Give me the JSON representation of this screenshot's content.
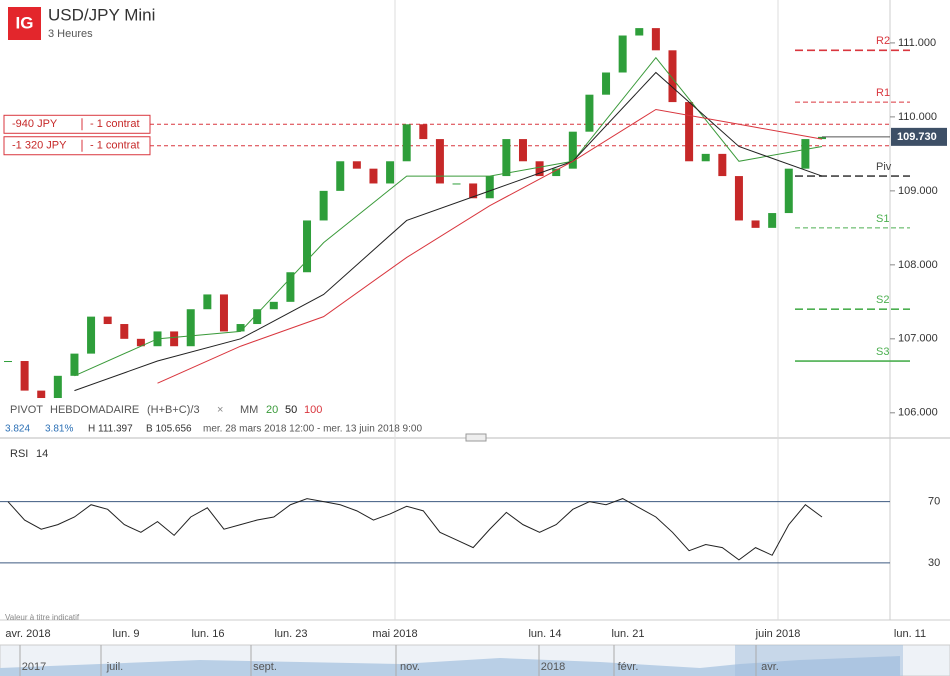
{
  "header": {
    "logo": "IG",
    "title": "USD/JPY Mini",
    "subtitle": "3 Heures"
  },
  "price_axis": {
    "ylim": [
      105.7,
      111.58
    ],
    "yticks": [
      {
        "value": 111,
        "label": "111.000"
      },
      {
        "value": 110,
        "label": "110.000"
      },
      {
        "value": 109,
        "label": "109.000"
      },
      {
        "value": 108,
        "label": "108.000"
      },
      {
        "value": 107,
        "label": "107.000"
      },
      {
        "value": 106,
        "label": "106.000"
      }
    ]
  },
  "current": {
    "value": 109.73,
    "label": "109.730"
  },
  "orders": [
    {
      "value": 109.9,
      "amount": "-940 JPY",
      "size": "- 1 contrat"
    },
    {
      "value": 109.61,
      "amount": "-1 320 JPY",
      "size": "- 1 contrat"
    }
  ],
  "pivots": [
    {
      "name": "R2",
      "value": 110.9,
      "color": "#d9363e"
    },
    {
      "name": "R1",
      "value": 110.2,
      "color": "#d9363e"
    },
    {
      "name": "Piv",
      "value": 109.2,
      "color": "#444444"
    },
    {
      "name": "S1",
      "value": 108.5,
      "color": "#4caf50"
    },
    {
      "name": "S2",
      "value": 107.4,
      "color": "#4caf50"
    },
    {
      "name": "S3",
      "value": 106.7,
      "color": "#4caf50"
    }
  ],
  "candles": {
    "up_color": "#2e9e3a",
    "down_color": "#c62828",
    "closes": [
      106.7,
      106.3,
      106.2,
      106.5,
      106.8,
      107.3,
      107.2,
      107.0,
      106.9,
      107.1,
      106.9,
      107.4,
      107.6,
      107.1,
      107.2,
      107.4,
      107.5,
      107.9,
      108.6,
      109.0,
      109.4,
      109.3,
      109.1,
      109.4,
      109.9,
      109.7,
      109.1,
      109.1,
      108.9,
      109.2,
      109.7,
      109.4,
      109.2,
      109.3,
      109.8,
      110.3,
      110.6,
      111.1,
      111.2,
      110.9,
      110.2,
      109.4,
      109.5,
      109.2,
      108.6,
      108.5,
      108.7,
      109.3,
      109.7,
      109.73
    ]
  },
  "legend": {
    "pivot": "PIVOT",
    "pivot_type": "HEBDOMADAIRE",
    "pivot_formula": "(H+B+C)/3",
    "ma": "MM"
  },
  "ma": [
    {
      "name": "20",
      "color": "#3a9a3a",
      "values": [
        106.5,
        107.0,
        107.1,
        108.3,
        109.2,
        109.2,
        109.4,
        110.8,
        109.4,
        109.6
      ]
    },
    {
      "name": "50",
      "color": "#222222",
      "values": [
        106.3,
        106.7,
        107.0,
        107.6,
        108.6,
        109.0,
        109.4,
        110.6,
        109.6,
        109.2
      ]
    },
    {
      "name": "100",
      "color": "#d9363e",
      "values": [
        null,
        106.4,
        106.9,
        107.3,
        108.1,
        108.8,
        109.4,
        110.1,
        109.9,
        109.7
      ]
    }
  ],
  "stats": {
    "change": "3.824",
    "change_pct": "3.81%",
    "high": "H 111.397",
    "low": "B 105.656",
    "range": "mer. 28 mars 2018 12:00 - mer. 13 juin 2018 9:00"
  },
  "rsi": {
    "label": "RSI",
    "period": "14",
    "color": "#222222",
    "ylim": [
      -4,
      107
    ],
    "yticks": [
      70,
      30
    ],
    "values": [
      70,
      58,
      52,
      55,
      60,
      68,
      65,
      55,
      50,
      57,
      48,
      60,
      66,
      52,
      55,
      58,
      60,
      68,
      72,
      70,
      68,
      64,
      58,
      62,
      67,
      64,
      50,
      45,
      40,
      52,
      63,
      55,
      50,
      55,
      65,
      70,
      68,
      72,
      66,
      60,
      50,
      38,
      42,
      40,
      32,
      40,
      35,
      55,
      68,
      60
    ]
  },
  "disclaimer": "Valeur à titre indicatif",
  "time_axis": [
    "avr. 2018",
    "lun. 9",
    "lun. 16",
    "lun. 23",
    "mai 2018",
    "lun. 14",
    "lun. 21",
    "juin 2018",
    "lun. 11"
  ],
  "navigator": [
    "2017",
    "juil.",
    "sept.",
    "nov.",
    "2018",
    "févr.",
    "avr."
  ]
}
